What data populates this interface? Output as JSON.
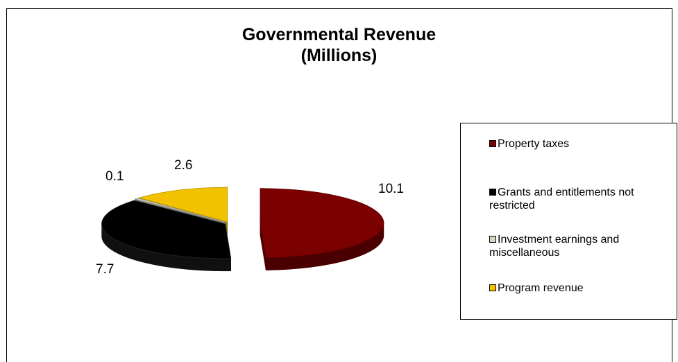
{
  "chart_data": {
    "type": "pie",
    "title": [
      "Governmental Revenue",
      "(Millions)"
    ],
    "slices": [
      {
        "label": "Property taxes",
        "value": 10.1,
        "display": "10.1",
        "color": "#7b0000",
        "exploded": true
      },
      {
        "label": "Grants and entitlements not restricted",
        "value": 7.7,
        "display": "7.7",
        "color": "#000000",
        "exploded": false
      },
      {
        "label": "Investment earnings and miscellaneous",
        "value": 0.1,
        "display": "0.1",
        "color": "#d6d6c4",
        "exploded": false
      },
      {
        "label": "Program revenue",
        "value": 2.6,
        "display": "2.6",
        "color": "#f2c200",
        "exploded": false
      }
    ],
    "legend_position": "right",
    "style": "3d-exploded-pie"
  }
}
